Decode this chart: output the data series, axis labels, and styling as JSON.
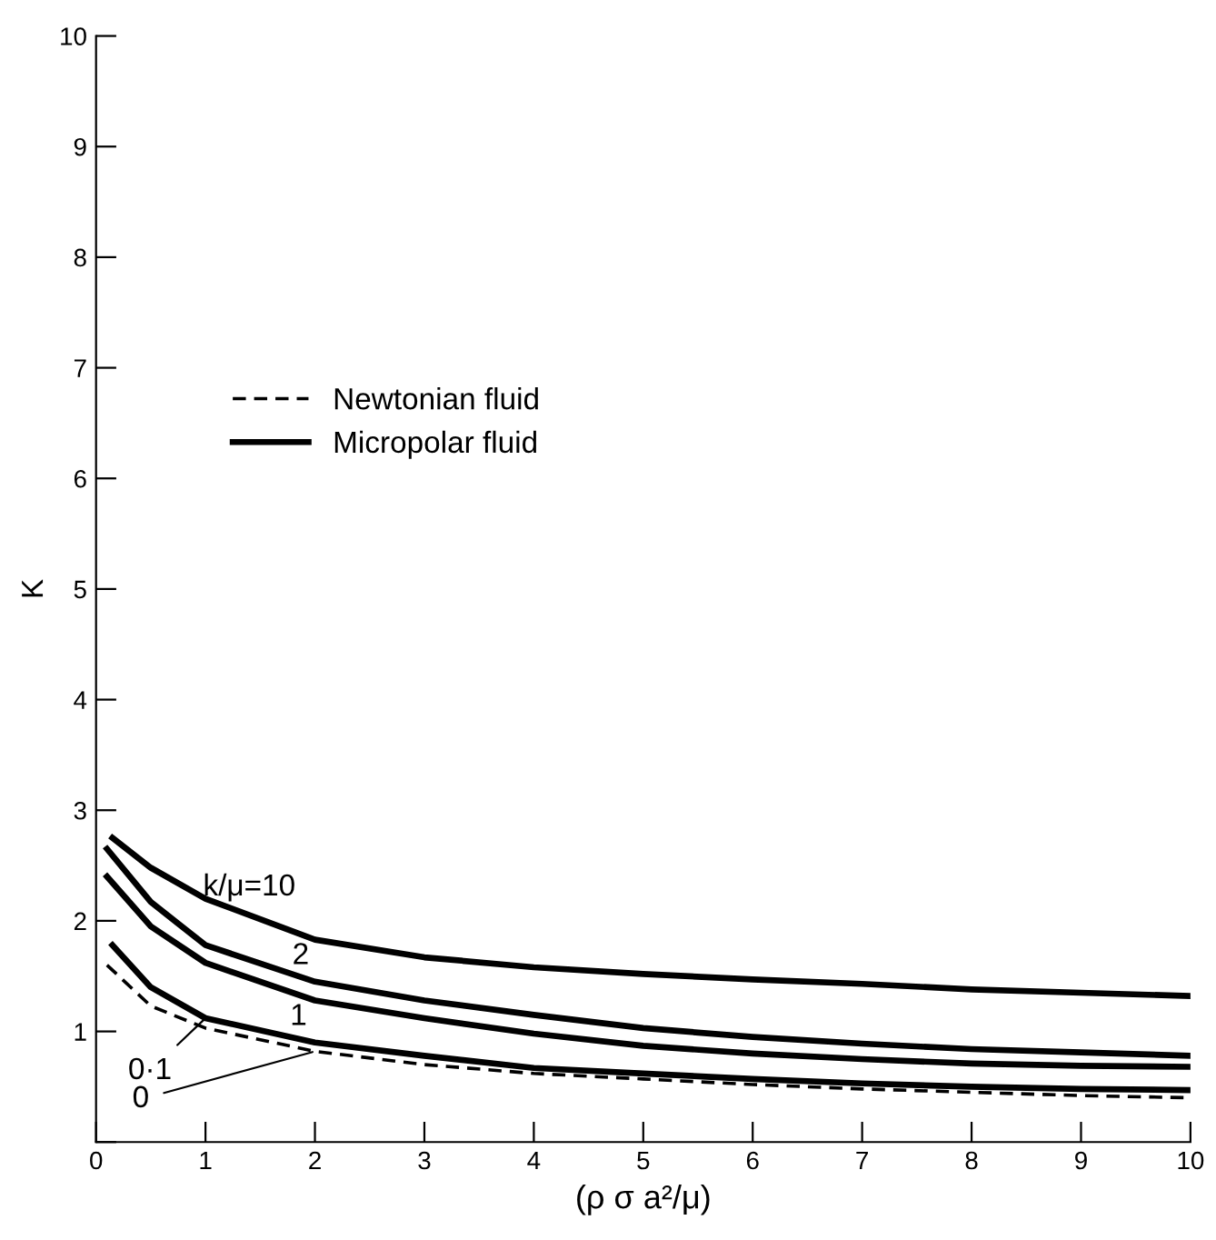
{
  "chart_data": {
    "type": "line",
    "xlabel": "(ρ σ a²/μ)",
    "ylabel": "K",
    "xlim": [
      0,
      10
    ],
    "ylim": [
      0,
      10
    ],
    "xticks": [
      0,
      1,
      2,
      3,
      4,
      5,
      6,
      7,
      8,
      9,
      10
    ],
    "yticks": [
      {
        "value": 0,
        "label": null
      },
      1,
      2,
      3,
      4,
      5,
      6,
      7,
      8,
      9,
      10
    ],
    "grid": false,
    "legend": "center left",
    "marker": "none",
    "series": [
      {
        "name": "Newtonian fluid",
        "color": "#000000",
        "line_style": "dashed",
        "x": [
          0.1,
          0.5,
          1,
          2,
          3,
          4,
          5,
          6,
          7,
          8,
          9,
          10
        ],
        "values": [
          1.6,
          1.23,
          1.03,
          0.82,
          0.7,
          0.62,
          0.57,
          0.52,
          0.48,
          0.45,
          0.42,
          0.4
        ]
      },
      {
        "name": "Micropolar fluid",
        "color": "#000000",
        "line_style": "solid",
        "x": [
          0.15,
          0.5,
          1,
          2,
          3,
          4,
          5,
          6,
          7,
          8,
          9,
          10
        ],
        "values": [
          2.75,
          2.48,
          2.2,
          1.83,
          1.67,
          1.58,
          1.52,
          1.47,
          1.43,
          1.38,
          1.35,
          1.32
        ]
      },
      {
        "color": "#000000",
        "line_style": "solid",
        "x": [
          0.1,
          0.5,
          1,
          2,
          3,
          4,
          5,
          6,
          7,
          8,
          9,
          10
        ],
        "values": [
          2.65,
          2.17,
          1.78,
          1.45,
          1.28,
          1.15,
          1.03,
          0.95,
          0.89,
          0.84,
          0.81,
          0.78
        ]
      },
      {
        "color": "#000000",
        "line_style": "solid",
        "x": [
          0.1,
          0.5,
          1,
          2,
          3,
          4,
          5,
          6,
          7,
          8,
          9,
          10
        ],
        "values": [
          2.4,
          1.95,
          1.62,
          1.28,
          1.12,
          0.98,
          0.87,
          0.8,
          0.75,
          0.71,
          0.69,
          0.68
        ]
      },
      {
        "color": "#000000",
        "line_style": "solid",
        "x": [
          0.15,
          0.5,
          1,
          2,
          3,
          4,
          5,
          6,
          7,
          8,
          9,
          10
        ],
        "values": [
          1.78,
          1.4,
          1.12,
          0.9,
          0.78,
          0.67,
          0.62,
          0.57,
          0.53,
          0.5,
          0.48,
          0.47
        ]
      }
    ],
    "annotations": [
      "k/μ=10",
      "2",
      "1",
      {
        "text": "0·1",
        "x": 1,
        "y": 1.12
      },
      {
        "text": "0",
        "x": 2,
        "y": 0.82
      }
    ]
  }
}
